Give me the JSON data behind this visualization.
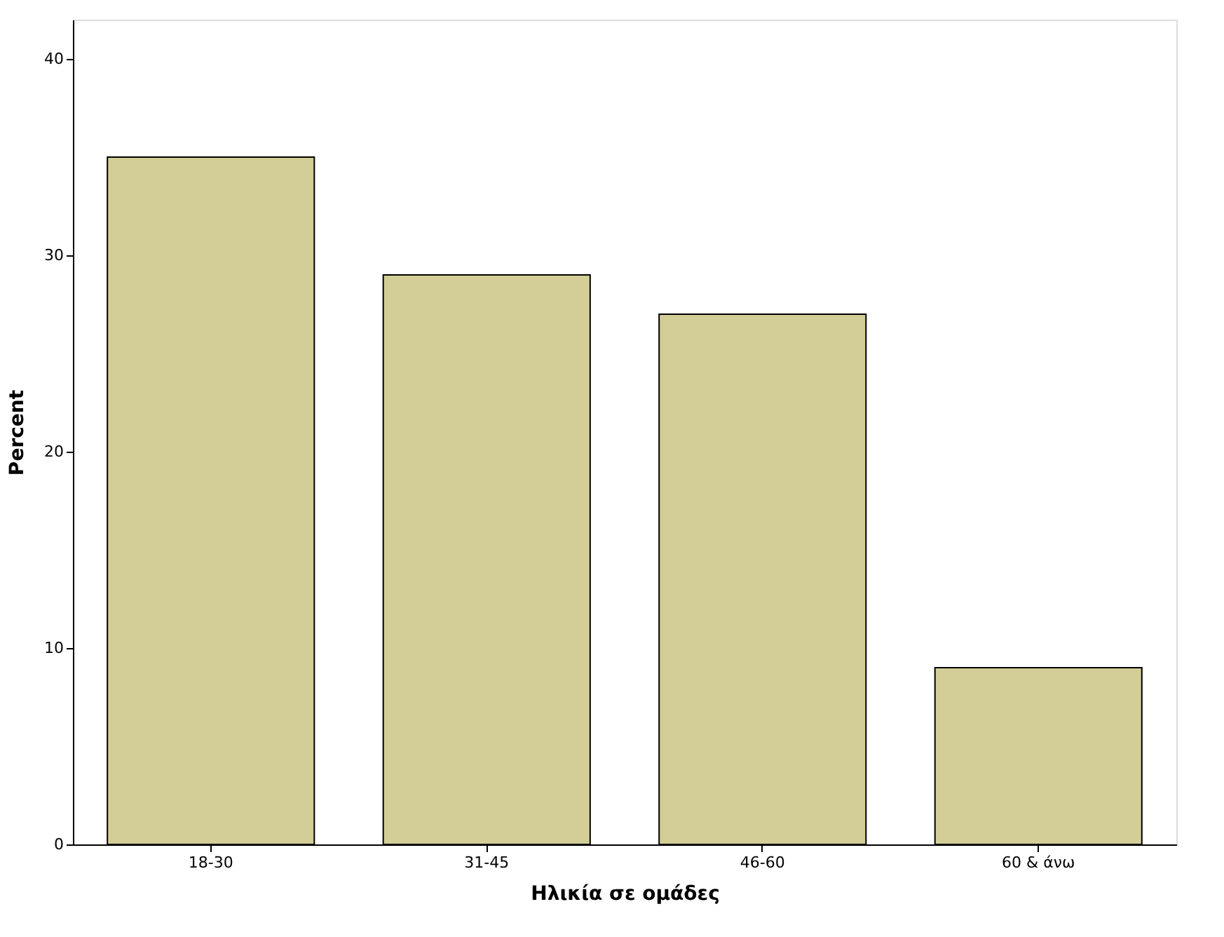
{
  "chart_data": {
    "type": "bar",
    "xlabel": "Ηλικία σε ομάδες",
    "ylabel": "Percent",
    "categories": [
      "18-30",
      "31-45",
      "46-60",
      "60 & άνω"
    ],
    "values": [
      35,
      29,
      27,
      9
    ],
    "color": "#d3ce97",
    "ylim": [
      0,
      42
    ],
    "yticks": [
      0,
      10,
      20,
      30,
      40
    ],
    "grid": false
  }
}
